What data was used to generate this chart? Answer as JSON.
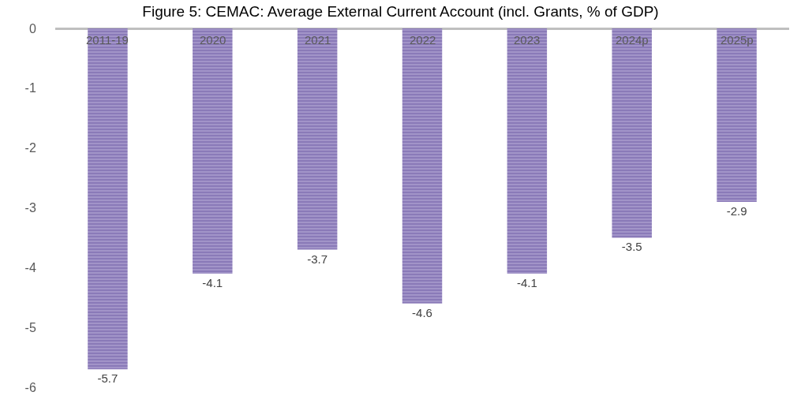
{
  "chart_data": {
    "type": "bar",
    "title": "Figure 5: CEMAC: Average External Current Account (incl. Grants, % of GDP)",
    "categories": [
      "2011-19",
      "2020",
      "2021",
      "2022",
      "2023",
      "2024p",
      "2025p"
    ],
    "values": [
      -5.7,
      -4.1,
      -3.7,
      -4.6,
      -4.1,
      -3.5,
      -2.9
    ],
    "color": "#8a7ab8",
    "ylim": [
      -6,
      0
    ],
    "yticks": [
      0,
      -1,
      -2,
      -3,
      -4,
      -5,
      -6
    ],
    "grid": false,
    "data_labels": true
  }
}
